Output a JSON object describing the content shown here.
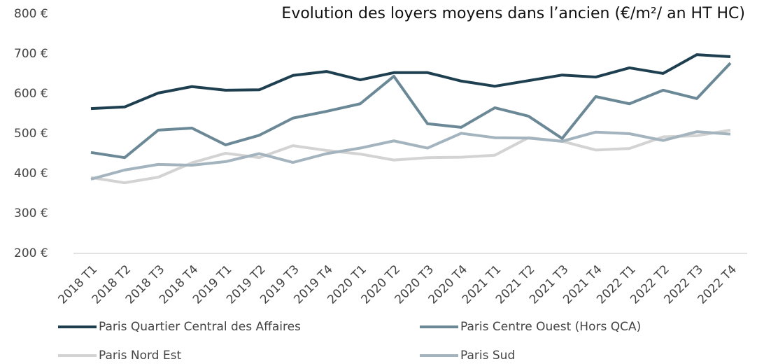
{
  "chart_data": {
    "type": "line",
    "title": "Evolution des loyers moyens dans l’ancien (€/m²/ an HT HC)",
    "categories": [
      "2018 T1",
      "2018 T2",
      "2018 T3",
      "2018 T4",
      "2019 T1",
      "2019 T2",
      "2019 T3",
      "2019 T4",
      "2020 T1",
      "2020 T2",
      "2020 T3",
      "2020 T4",
      "2021 T1",
      "2021 T2",
      "2021 T3",
      "2021 T4",
      "2022 T1",
      "2022 T2",
      "2022 T3",
      "2022 T4"
    ],
    "series": [
      {
        "name": "Paris Quartier Central des Affaires",
        "color": "#1e3f50",
        "values": [
          563,
          567,
          602,
          618,
          609,
          610,
          646,
          656,
          635,
          653,
          653,
          632,
          619,
          633,
          647,
          642,
          665,
          651,
          698,
          693
        ]
      },
      {
        "name": "Paris Centre Ouest (Hors QCA)",
        "color": "#6b8896",
        "values": [
          453,
          440,
          509,
          514,
          472,
          496,
          539,
          556,
          575,
          644,
          525,
          516,
          565,
          544,
          488,
          593,
          575,
          609,
          588,
          677
        ]
      },
      {
        "name": "Paris Nord Est",
        "color": "#d3d3d3",
        "values": [
          390,
          377,
          391,
          427,
          451,
          440,
          470,
          458,
          449,
          434,
          440,
          441,
          446,
          490,
          481,
          459,
          463,
          492,
          495,
          509
        ]
      },
      {
        "name": "Paris Sud",
        "color": "#a3b4be",
        "values": [
          386,
          409,
          423,
          421,
          430,
          450,
          428,
          450,
          464,
          482,
          464,
          501,
          490,
          489,
          481,
          504,
          500,
          483,
          505,
          499
        ]
      }
    ],
    "ylim": [
      200,
      800
    ],
    "yticks": [
      {
        "value": 200,
        "label": "200 €"
      },
      {
        "value": 300,
        "label": "300 €"
      },
      {
        "value": 400,
        "label": "400 €"
      },
      {
        "value": 500,
        "label": "500 €"
      },
      {
        "value": 600,
        "label": "600 €"
      },
      {
        "value": 700,
        "label": "700 €"
      },
      {
        "value": 800,
        "label": "800 €"
      }
    ],
    "grid": false
  }
}
